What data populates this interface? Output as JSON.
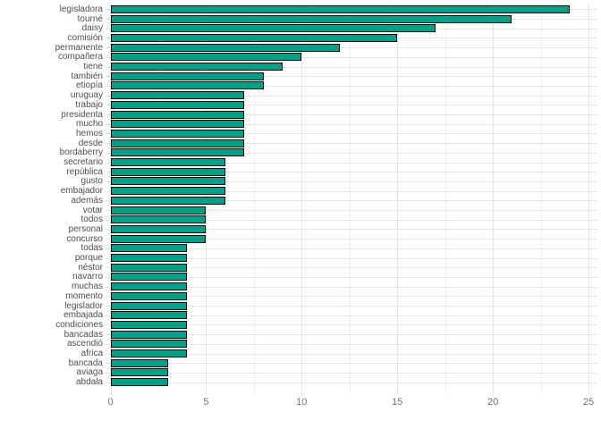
{
  "chart_data": {
    "type": "bar",
    "orientation": "horizontal",
    "title": "",
    "xlabel": "",
    "ylabel": "",
    "categories": [
      "legisladora",
      "tourné",
      "daisy",
      "comisión",
      "permanente",
      "compañera",
      "tiene",
      "también",
      "etiopía",
      "uruguay",
      "trabajo",
      "presidenta",
      "mucho",
      "hemos",
      "desde",
      "bordaberry",
      "secretario",
      "república",
      "gusto",
      "embajador",
      "además",
      "votar",
      "todos",
      "personal",
      "concurso",
      "todas",
      "porque",
      "néstor",
      "navarro",
      "muchas",
      "momento",
      "legislador",
      "embajada",
      "condiciones",
      "bancadas",
      "ascendió",
      "africa",
      "bancada",
      "aviaga",
      "abdala"
    ],
    "values": [
      24,
      21,
      17,
      15,
      12,
      10,
      9,
      8,
      8,
      7,
      7,
      7,
      7,
      7,
      7,
      7,
      6,
      6,
      6,
      6,
      6,
      5,
      5,
      5,
      5,
      4,
      4,
      4,
      4,
      4,
      4,
      4,
      4,
      4,
      4,
      4,
      4,
      3,
      3,
      3
    ],
    "xlim": [
      0,
      25
    ],
    "x_major_ticks": [
      0,
      5,
      10,
      15,
      20,
      25
    ],
    "x_minor_ticks": [
      2.5,
      7.5,
      12.5,
      17.5,
      22.5
    ],
    "grid": true,
    "legend": false
  },
  "style": {
    "background": "#ffffff",
    "bar_fill": "#00a189",
    "bar_stroke": "#000000",
    "grid_major": "#e3e3e3",
    "grid_minor": "#f0f0f0",
    "axis_text_color": "#4d4d4d",
    "tick_text_color": "#717171"
  }
}
